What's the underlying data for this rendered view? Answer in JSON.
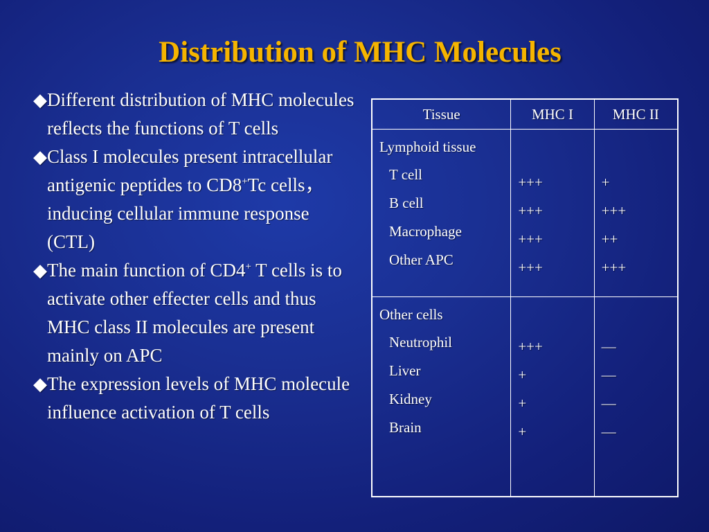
{
  "slide": {
    "title": "Distribution of MHC Molecules",
    "bullet_marker": "◆",
    "bullets": {
      "b1": "Different distribution of MHC molecules reflects the functions of T cells",
      "b2_pre": "Class I molecules present intracellular antigenic peptides to CD8",
      "b2_sup": "+",
      "b2_post": "Tc cells，inducing cellular immune response (CTL)",
      "b3_pre": "The main function of CD4",
      "b3_sup": "+",
      "b3_post": " T cells is to activate other effecter cells and thus  MHC class II molecules are present mainly on APC",
      "b4": "The expression levels of MHC molecule influence activation of T cells"
    }
  },
  "table": {
    "headers": {
      "tissue": "Tissue",
      "mhc1": "MHC I",
      "mhc2": "MHC II"
    },
    "lymphoid": {
      "label": "Lymphoid tissue",
      "rows": [
        {
          "name": "T cell",
          "mhc1": "+++",
          "mhc2": "+"
        },
        {
          "name": "B cell",
          "mhc1": "+++",
          "mhc2": "+++"
        },
        {
          "name": "Macrophage",
          "mhc1": "+++",
          "mhc2": "++"
        },
        {
          "name": "Other APC",
          "mhc1": "+++",
          "mhc2": "+++"
        }
      ]
    },
    "other": {
      "label": "Other cells",
      "rows": [
        {
          "name": "Neutrophil",
          "mhc1": "+++",
          "mhc2": "—"
        },
        {
          "name": "Liver",
          "mhc1": "+",
          "mhc2": "—"
        },
        {
          "name": "Kidney",
          "mhc1": "+",
          "mhc2": "—"
        },
        {
          "name": "Brain",
          "mhc1": "+",
          "mhc2": "—"
        }
      ]
    }
  }
}
